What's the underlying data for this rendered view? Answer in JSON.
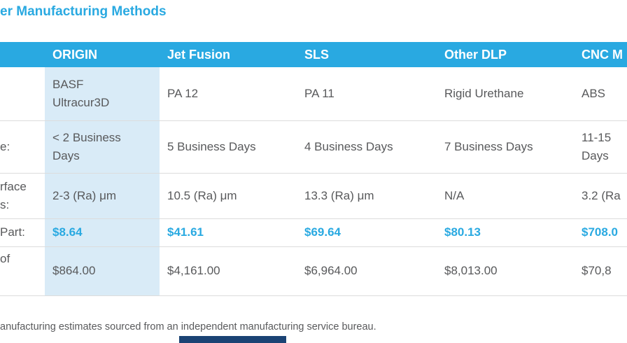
{
  "title": "er Manufacturing Methods",
  "colors": {
    "accent_blue": "#29a9e1",
    "highlight_column_bg": "#d9ebf7",
    "body_text": "#58595b",
    "footer_bar": "#1b4374"
  },
  "table": {
    "header": {
      "col0": "",
      "col1": "ORIGIN",
      "col2": "Jet Fusion",
      "col3": "SLS",
      "col4": "Other DLP",
      "col5": "CNC M"
    },
    "rows": [
      {
        "label": "",
        "origin": "BASF\nUltracur3D",
        "jet_fusion": "PA 12",
        "sls": "PA 11",
        "other_dlp": "Rigid Urethane",
        "cnc": "ABS"
      },
      {
        "label": "e:",
        "origin": "< 2 Business\nDays",
        "jet_fusion": "5 Business Days",
        "sls": "4 Business Days",
        "other_dlp": "7 Business Days",
        "cnc": "11-15\nDays"
      },
      {
        "label": "rface\ns:",
        "origin": "2-3 (Ra) μm",
        "jet_fusion": "10.5 (Ra) μm",
        "sls": "13.3 (Ra) μm",
        "other_dlp": "N/A",
        "cnc": "3.2 (Ra"
      },
      {
        "label": "Part:",
        "origin": "$8.64",
        "jet_fusion": "$41.61",
        "sls": "$69.64",
        "other_dlp": "$80.13",
        "cnc": "$708.0"
      },
      {
        "label": "of",
        "origin": "$864.00",
        "jet_fusion": "$4,161.00",
        "sls": "$6,964.00",
        "other_dlp": "$8,013.00",
        "cnc": "$70,8"
      }
    ]
  },
  "footnote": "anufacturing estimates sourced from an independent manufacturing service bureau."
}
